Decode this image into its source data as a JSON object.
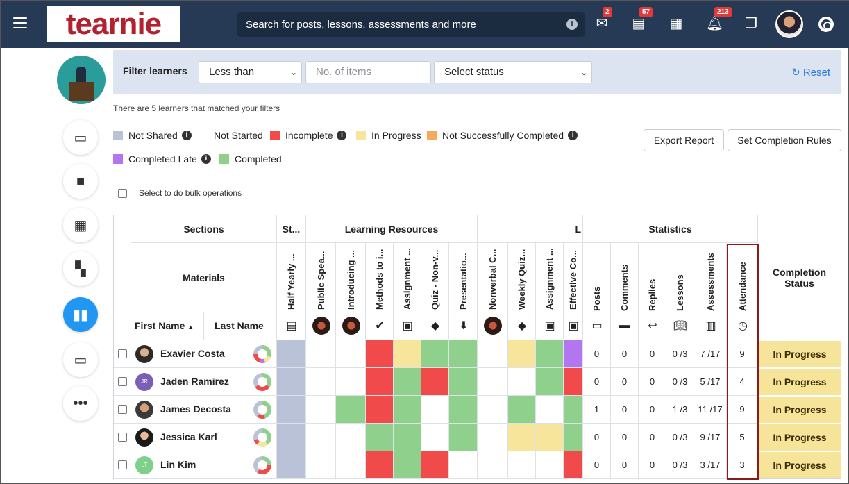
{
  "header": {
    "logo": "tearnie",
    "search_placeholder": "Search for posts, lessons, assessments and more",
    "badges": {
      "mail": "2",
      "posts": "57",
      "notifications": "213"
    }
  },
  "filter": {
    "label": "Filter learners",
    "comparator": "Less than",
    "items_placeholder": "No. of items",
    "status_placeholder": "Select status",
    "reset": "Reset"
  },
  "matched": "There are 5 learners that matched your filters",
  "legend": [
    {
      "label": "Not Shared",
      "color": "#b9c2d6",
      "info": true
    },
    {
      "label": "Not Started",
      "color": "#ffffff",
      "info": false
    },
    {
      "label": "Incomplete",
      "color": "#f04a4a",
      "info": true
    },
    {
      "label": "In Progress",
      "color": "#f6e59a",
      "info": false
    },
    {
      "label": "Not Successfully Completed",
      "color": "#f6a95a",
      "info": true
    },
    {
      "label": "Completed Late",
      "color": "#b176f0",
      "info": true
    },
    {
      "label": "Completed",
      "color": "#8fd18c",
      "info": false
    }
  ],
  "buttons": {
    "export": "Export Report",
    "rules": "Set Completion Rules"
  },
  "bulk": "Select to do bulk operations",
  "table": {
    "sections_label": "Sections",
    "materials_label": "Materials",
    "first_name": "First Name",
    "last_name": "Last Name",
    "groups": [
      "St...",
      "Learning Resources",
      "L",
      "Statistics"
    ],
    "materials": [
      "Half Yearly ...",
      "Public Spea...",
      "Introducing ...",
      "Methods to i...",
      "Assignment ...",
      "Quiz - Non-v...",
      "Presentatio...",
      "Nonverbal C...",
      "Weekly Quiz...",
      "Assignment ...",
      "Effective Co..."
    ],
    "stats": [
      "Posts",
      "Comments",
      "Replies",
      "Lessons",
      "Assessments",
      "Attendance"
    ],
    "completion": "Completion Status",
    "rows": [
      {
        "name": "Exavier Costa",
        "posts": "0",
        "comments": "0",
        "replies": "0",
        "lessons": "0 /3",
        "assessments": "7 /17",
        "attendance": "9",
        "status": "In Progress"
      },
      {
        "name": "Jaden Ramirez",
        "initials": "JR",
        "posts": "0",
        "comments": "0",
        "replies": "0",
        "lessons": "0 /3",
        "assessments": "5 /17",
        "attendance": "4",
        "status": "In Progress"
      },
      {
        "name": "James Decosta",
        "posts": "1",
        "comments": "0",
        "replies": "0",
        "lessons": "1 /3",
        "assessments": "11 /17",
        "attendance": "9",
        "status": "In Progress"
      },
      {
        "name": "Jessica Karl",
        "posts": "0",
        "comments": "0",
        "replies": "0",
        "lessons": "0 /3",
        "assessments": "9 /17",
        "attendance": "5",
        "status": "In Progress"
      },
      {
        "name": "Lin Kim",
        "initials": "LT",
        "posts": "0",
        "comments": "0",
        "replies": "0",
        "lessons": "0 /3",
        "assessments": "3 /17",
        "attendance": "3",
        "status": "In Progress"
      }
    ]
  }
}
